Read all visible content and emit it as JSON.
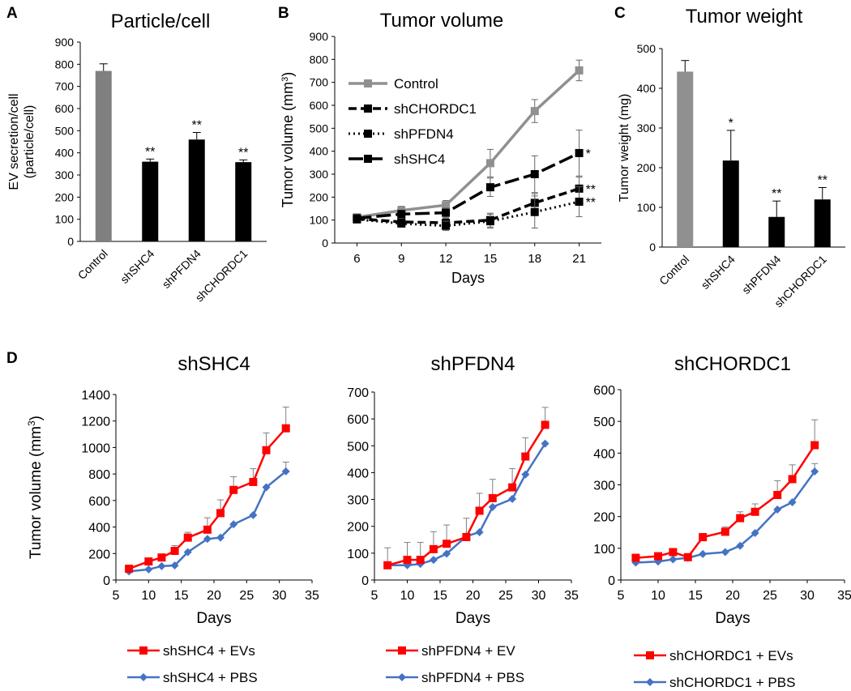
{
  "chart_data": [
    {
      "panel": "A",
      "type": "bar",
      "title": "Particle/cell",
      "ylabel": "EV secretion/cell",
      "ylabel2": "(particle/cell)",
      "ylim": [
        0,
        900
      ],
      "yticks": [
        0,
        100,
        200,
        300,
        400,
        500,
        600,
        700,
        800,
        900
      ],
      "categories": [
        "Control",
        "shSHC4",
        "shPFDN4",
        "shCHORDC1"
      ],
      "values": [
        770,
        360,
        460,
        358
      ],
      "errors": [
        32,
        12,
        32,
        10
      ],
      "significance": [
        "",
        "**",
        "**",
        "**"
      ],
      "colors": [
        "#808080",
        "#000000",
        "#000000",
        "#000000"
      ]
    },
    {
      "panel": "B",
      "type": "line",
      "title": "Tumor volume",
      "xlabel": "Days",
      "ylabel": "Tumor volume (mm",
      "ylabel_sup": "3",
      "ylabel_end": ")",
      "ylim": [
        0,
        900
      ],
      "yticks": [
        0,
        100,
        200,
        300,
        400,
        500,
        600,
        700,
        800,
        900
      ],
      "x": [
        6,
        9,
        12,
        15,
        18,
        21
      ],
      "series": [
        {
          "name": "Control",
          "values": [
            112,
            142,
            165,
            348,
            575,
            752
          ],
          "errors": [
            12,
            18,
            20,
            60,
            50,
            45
          ],
          "color": "#909090",
          "dash": "solid",
          "significance": ""
        },
        {
          "name": "shCHORDC1",
          "values": [
            106,
            92,
            88,
            100,
            175,
            237
          ],
          "errors": [
            10,
            15,
            20,
            30,
            40,
            50
          ],
          "color": "#000000",
          "dash": "dashed",
          "significance": "**"
        },
        {
          "name": "shPFDN4",
          "values": [
            103,
            85,
            75,
            95,
            135,
            180
          ],
          "errors": [
            10,
            15,
            20,
            30,
            70,
            65
          ],
          "color": "#000000",
          "dash": "dotted",
          "significance": "**"
        },
        {
          "name": "shSHC4",
          "values": [
            108,
            126,
            132,
            243,
            300,
            392
          ],
          "errors": [
            12,
            18,
            20,
            40,
            80,
            100
          ],
          "color": "#000000",
          "dash": "longdash",
          "significance": "*"
        }
      ]
    },
    {
      "panel": "C",
      "type": "bar",
      "title": "Tumor weight",
      "ylabel": "Tumor weight (mg)",
      "ylim": [
        0,
        500
      ],
      "yticks": [
        0,
        100,
        200,
        300,
        400,
        500
      ],
      "categories": [
        "Control",
        "shSHC4",
        "shPFDN4",
        "shCHORDC1"
      ],
      "values": [
        442,
        218,
        76,
        120
      ],
      "errors": [
        28,
        76,
        40,
        30
      ],
      "significance": [
        "",
        "*",
        "**",
        "**"
      ],
      "colors": [
        "#909090",
        "#000000",
        "#000000",
        "#000000"
      ]
    },
    {
      "panel": "D",
      "type": "line",
      "title": "shSHC4",
      "xlabel": "Days",
      "ylabel": "Tumor volume (mm",
      "ylabel_sup": "3",
      "ylabel_end": ")",
      "xlim": [
        5,
        35
      ],
      "xticks": [
        5,
        10,
        15,
        20,
        25,
        30,
        35
      ],
      "ylim": [
        0,
        1400
      ],
      "yticks": [
        0,
        200,
        400,
        600,
        800,
        1000,
        1200,
        1400
      ],
      "x": [
        7,
        10,
        12,
        14,
        16,
        19,
        21,
        23,
        26,
        28,
        31
      ],
      "series": [
        {
          "name": "shSHC4 + EVs",
          "values": [
            85,
            140,
            170,
            220,
            320,
            380,
            505,
            680,
            740,
            980,
            1145
          ],
          "errors": [
            10,
            20,
            25,
            40,
            40,
            90,
            100,
            100,
            100,
            130,
            160
          ],
          "color": "#ff0000",
          "marker": "square"
        },
        {
          "name": "shSHC4 + PBS",
          "values": [
            65,
            80,
            105,
            110,
            210,
            310,
            320,
            420,
            490,
            700,
            820
          ],
          "errors": [
            0,
            0,
            0,
            0,
            0,
            0,
            0,
            0,
            0,
            0,
            70
          ],
          "color": "#4472c4",
          "marker": "diamond"
        }
      ]
    },
    {
      "panel": "",
      "type": "line",
      "title": "shPFDN4",
      "xlabel": "Days",
      "xlim": [
        5,
        35
      ],
      "xticks": [
        5,
        10,
        15,
        20,
        25,
        30,
        35
      ],
      "ylim": [
        0,
        700
      ],
      "yticks": [
        0,
        100,
        200,
        300,
        400,
        500,
        600,
        700
      ],
      "x": [
        7,
        10,
        12,
        14,
        16,
        19,
        21,
        23,
        26,
        28,
        31
      ],
      "series": [
        {
          "name": "shPFDN4 + EV",
          "values": [
            55,
            75,
            75,
            115,
            135,
            160,
            258,
            305,
            345,
            460,
            578
          ],
          "errors": [
            65,
            65,
            65,
            65,
            70,
            70,
            65,
            70,
            70,
            70,
            65
          ],
          "color": "#ff0000",
          "marker": "square"
        },
        {
          "name": "shPFDN4 + PBS",
          "values": [
            55,
            55,
            60,
            75,
            98,
            163,
            178,
            272,
            302,
            393,
            508
          ],
          "errors": [
            0,
            0,
            0,
            0,
            0,
            0,
            0,
            0,
            0,
            0,
            0
          ],
          "color": "#4472c4",
          "marker": "diamond"
        }
      ]
    },
    {
      "panel": "",
      "type": "line",
      "title": "shCHORDC1",
      "xlabel": "Days",
      "xlim": [
        5,
        35
      ],
      "xticks": [
        5,
        10,
        15,
        20,
        25,
        30,
        35
      ],
      "ylim": [
        0,
        600
      ],
      "yticks": [
        0,
        100,
        200,
        300,
        400,
        500,
        600
      ],
      "x": [
        7,
        10,
        12,
        14,
        16,
        19,
        21,
        23,
        26,
        28,
        31
      ],
      "series": [
        {
          "name": "shCHORDC1 + EVs",
          "values": [
            70,
            75,
            88,
            72,
            135,
            152,
            195,
            215,
            268,
            318,
            425
          ],
          "errors": [
            8,
            8,
            8,
            8,
            12,
            15,
            20,
            25,
            45,
            45,
            80
          ],
          "color": "#ff0000",
          "marker": "square"
        },
        {
          "name": "shCHORDC1 + PBS",
          "values": [
            55,
            58,
            65,
            70,
            82,
            88,
            108,
            148,
            222,
            245,
            342
          ],
          "errors": [
            0,
            0,
            0,
            0,
            0,
            0,
            0,
            0,
            0,
            0,
            25
          ],
          "color": "#4472c4",
          "marker": "diamond"
        }
      ]
    }
  ]
}
